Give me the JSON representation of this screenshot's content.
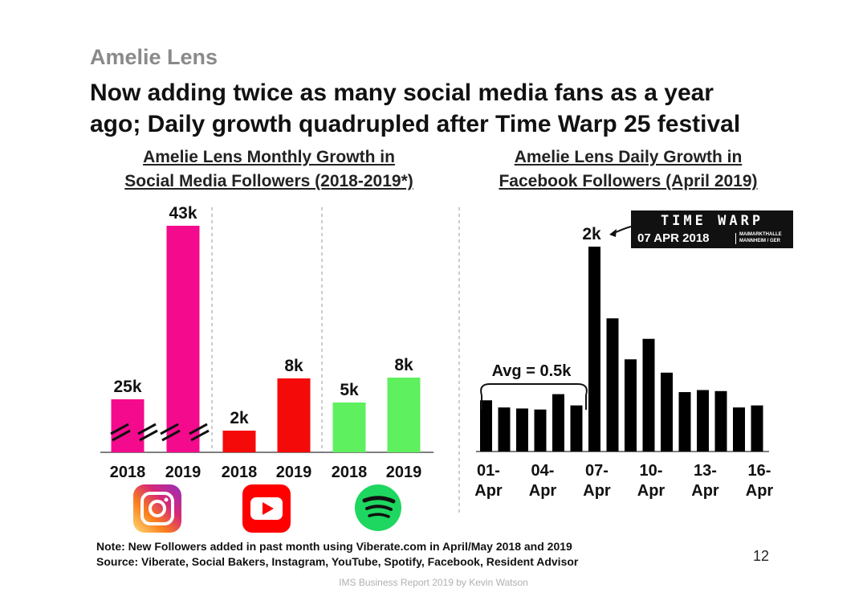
{
  "brand": "Amelie Lens",
  "headline": {
    "line1": "Now adding twice as many social media fans as a year",
    "line2": "ago; Daily growth quadrupled after Time Warp 25 festival"
  },
  "left_chart_title": {
    "line1": "Amelie Lens Monthly Growth in",
    "line2": "Social Media Followers (2018-2019*)"
  },
  "right_chart_title": {
    "line1": "Amelie Lens Daily Growth in",
    "line2": "Facebook Followers (April 2019)"
  },
  "platform_icons": [
    {
      "name": "instagram-icon",
      "color": "#d62976"
    },
    {
      "name": "youtube-icon",
      "color": "#ff0000"
    },
    {
      "name": "spotify-icon",
      "color": "#1ed760"
    }
  ],
  "timewarp_banner": {
    "logo": "TIME WARP",
    "date": "07 APR 2018",
    "venue_line1": "MAIMARKTHALLE",
    "venue_line2": "MANNHEIM / GER"
  },
  "note": {
    "line1": "Note: New Followers added in past month using Viberate.com in April/May 2018 and 2019",
    "line2": "Source: Viberate, Social Bakers, Instagram, YouTube, Spotify, Facebook, Resident Advisor"
  },
  "page_number": "12",
  "footer": "IMS Business Report 2019 by Kevin Watson",
  "chart_data": [
    {
      "type": "bar",
      "title": "Amelie Lens Monthly Growth in Social Media Followers (2018-2019*)",
      "axis_break": "instagram bars",
      "groups": [
        {
          "platform": "Instagram",
          "color": "#f40a8c",
          "categories": [
            "2018",
            "2019"
          ],
          "values": [
            25,
            43
          ],
          "labels": [
            "25k",
            "43k"
          ]
        },
        {
          "platform": "YouTube",
          "color": "#f50a0a",
          "categories": [
            "2018",
            "2019"
          ],
          "values": [
            2,
            8
          ],
          "labels": [
            "2k",
            "8k"
          ]
        },
        {
          "platform": "Spotify",
          "color": "#5ef05e",
          "categories": [
            "2018",
            "2019"
          ],
          "values": [
            5,
            8
          ],
          "labels": [
            "5k",
            "8k"
          ]
        }
      ],
      "unit": "k"
    },
    {
      "type": "bar",
      "title": "Amelie Lens Daily Growth in Facebook Followers (April 2019)",
      "color": "#000000",
      "days": [
        1,
        2,
        3,
        4,
        5,
        6,
        7,
        8,
        9,
        10,
        11,
        12,
        13,
        14,
        15,
        16,
        17
      ],
      "values": [
        0.5,
        0.43,
        0.42,
        0.41,
        0.56,
        0.45,
        2.0,
        1.3,
        0.9,
        1.1,
        0.77,
        0.58,
        0.6,
        0.59,
        0.43,
        0.45,
        0
      ],
      "tick_labels": [
        "01-\nApr",
        "04-\nApr",
        "07-\nApr",
        "10-\nApr",
        "13-\nApr",
        "16-\nApr"
      ],
      "tick_days": [
        1,
        4,
        7,
        10,
        13,
        16
      ],
      "annotations": [
        {
          "text": "2k",
          "day": 7
        },
        {
          "text": "Avg = 0.5k",
          "span_days": [
            1,
            6
          ]
        }
      ],
      "unit": "k"
    }
  ]
}
